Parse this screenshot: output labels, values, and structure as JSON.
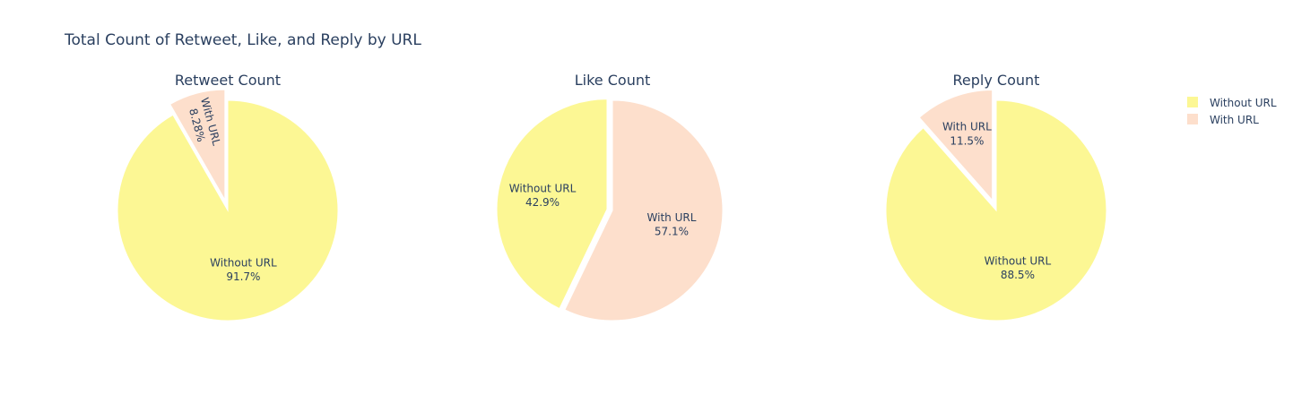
{
  "chart_data": {
    "type": "pie",
    "title": "Total Count of Retweet, Like, and Reply by URL",
    "colors": {
      "Without URL": "#fcf794",
      "With URL": "#fddfcc"
    },
    "legend": {
      "placement": "top-right",
      "entries": [
        "Without URL",
        "With URL"
      ]
    },
    "pies": [
      {
        "title": "Retweet Count",
        "slices": [
          {
            "label": "Without URL",
            "percent": 91.7,
            "percent_text": "91.7%"
          },
          {
            "label": "With URL",
            "percent": 8.28,
            "percent_text": "8.28%",
            "pulled": true
          }
        ]
      },
      {
        "title": "Like Count",
        "slices": [
          {
            "label": "Without URL",
            "percent": 42.9,
            "percent_text": "42.9%",
            "pulled": true
          },
          {
            "label": "With URL",
            "percent": 57.1,
            "percent_text": "57.1%"
          }
        ]
      },
      {
        "title": "Reply Count",
        "slices": [
          {
            "label": "Without URL",
            "percent": 88.5,
            "percent_text": "88.5%"
          },
          {
            "label": "With URL",
            "percent": 11.5,
            "percent_text": "11.5%",
            "pulled": true
          }
        ]
      }
    ]
  }
}
